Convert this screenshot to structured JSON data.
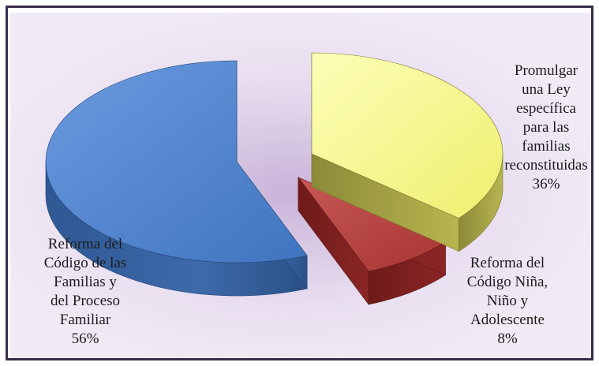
{
  "chart_data": {
    "type": "pie",
    "style": "3d-exploded",
    "title": "",
    "slices": [
      {
        "label": "Promulgar una Ley específica para las familias reconstituidas",
        "value": 36,
        "pct_label": "36%",
        "color": "#f5f590"
      },
      {
        "label": "Reforma del Código Niña, Niño y Adolescente",
        "value": 8,
        "pct_label": "8%",
        "color": "#b0413e"
      },
      {
        "label": "Reforma del Código de las Familias y del Proceso Familiar",
        "value": 56,
        "pct_label": "56%",
        "color": "#4a7ec6"
      }
    ]
  },
  "labels": {
    "yellow": "Promulgar\nuna Ley\nespecífica\npara las\nfamilias\nreconstituidas\n36%",
    "red": "Reforma del\nCódigo Niña,\nNiño y\nAdolescente\n8%",
    "blue": "Reforma del\nCódigo de las\nFamilias y\ndel Proceso\nFamiliar\n56%"
  }
}
